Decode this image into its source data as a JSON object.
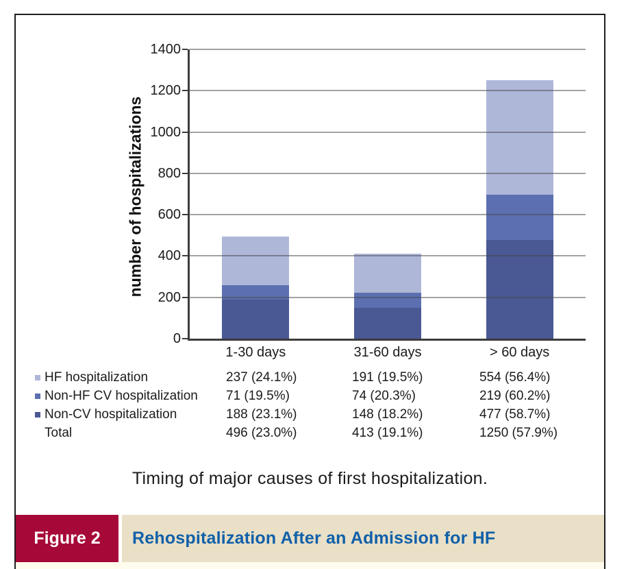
{
  "figure": {
    "label": "Figure 2",
    "title": "Rehospitalization After an Admission for HF",
    "caption": "Timing of major causes of first hospitalization."
  },
  "colors": {
    "figure_label_bg": "#A60938",
    "figure_label_text": "#FFFFFF",
    "figure_title_bar_bg": "#E9E0C7",
    "figure_title_text": "#1160A9",
    "frame_border": "#1E1E1E",
    "axis": "#3C3C3C",
    "gridline": "#8A8A8A",
    "bottom_strip_bg": "#FFFCEE"
  },
  "chart_data": {
    "type": "bar",
    "stacked": true,
    "title": "",
    "xlabel": "",
    "ylabel": "number of hospitalizations",
    "ylim": [
      0,
      1400
    ],
    "yticks": [
      0,
      200,
      400,
      600,
      800,
      1000,
      1200,
      1400
    ],
    "grid": "horizontal",
    "legend_position": "bottom-left-table",
    "categories": [
      "1-30 days",
      "31-60 days",
      "> 60 days"
    ],
    "series": [
      {
        "name": "Non-CV hospitalization",
        "color": "#4A5894",
        "values": [
          188,
          148,
          477
        ]
      },
      {
        "name": "Non-HF CV hospitalization",
        "color": "#5C6FB0",
        "values": [
          71,
          74,
          219
        ]
      },
      {
        "name": "HF hospitalization",
        "color": "#AFB7D9",
        "values": [
          237,
          191,
          554
        ]
      }
    ],
    "legend_table": {
      "rows": [
        {
          "label": "HF hospitalization",
          "marker_color": "#AFB7D9",
          "values": [
            "237 (24.1%)",
            "191 (19.5%)",
            "554 (56.4%)"
          ]
        },
        {
          "label": "Non-HF CV hospitalization",
          "marker_color": "#5C6FB0",
          "values": [
            "71 (19.5%)",
            "74 (20.3%)",
            "219 (60.2%)"
          ]
        },
        {
          "label": "Non-CV hospitalization",
          "marker_color": "#4A5894",
          "values": [
            "188 (23.1%)",
            "148 (18.2%)",
            "477 (58.7%)"
          ]
        },
        {
          "label": "Total",
          "marker_color": "",
          "values": [
            "496 (23.0%)",
            "413 (19.1%)",
            "1250 (57.9%)"
          ]
        }
      ]
    }
  }
}
